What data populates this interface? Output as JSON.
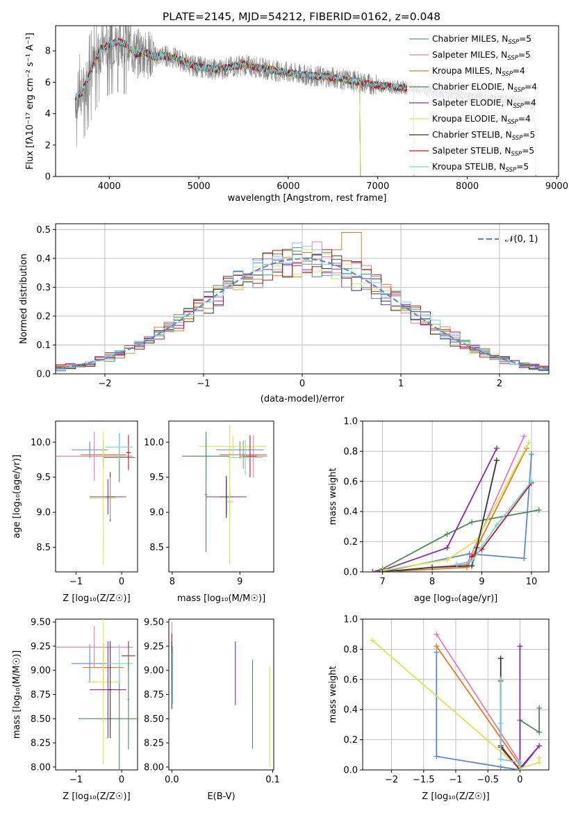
{
  "figure": {
    "title": "PLATE=2145, MJD=54212, FIBERID=0162, z=0.048"
  },
  "chart_data": [
    {
      "id": "spectrum",
      "type": "line",
      "xlabel": "wavelength [Angstrom, rest frame]",
      "ylabel": "Flux [fλ10⁻¹⁷ erg cm⁻² s⁻¹ A⁻¹]",
      "xlim": [
        3400,
        9020
      ],
      "ylim": [
        0,
        9.6
      ],
      "xticks": [
        4000,
        5000,
        6000,
        7000,
        8000,
        9000
      ],
      "yticks": [
        0,
        2,
        4,
        6,
        8
      ],
      "legend_position": "right",
      "observed_color": "#808080",
      "continuum": [
        [
          3620,
          5.0
        ],
        [
          3700,
          5.4
        ],
        [
          3800,
          6.8
        ],
        [
          3900,
          8.1
        ],
        [
          4000,
          8.4
        ],
        [
          4100,
          8.6
        ],
        [
          4200,
          8.4
        ],
        [
          4300,
          7.8
        ],
        [
          4400,
          7.9
        ],
        [
          4500,
          7.6
        ],
        [
          4600,
          7.7
        ],
        [
          4700,
          7.6
        ],
        [
          4800,
          7.4
        ],
        [
          4900,
          7.1
        ],
        [
          5000,
          7.0
        ],
        [
          5100,
          6.9
        ],
        [
          5200,
          6.8
        ],
        [
          5300,
          6.9
        ],
        [
          5400,
          7.0
        ],
        [
          5500,
          7.1
        ],
        [
          5600,
          7.0
        ],
        [
          5700,
          6.9
        ],
        [
          5800,
          6.8
        ],
        [
          5900,
          6.7
        ],
        [
          6000,
          6.6
        ],
        [
          6100,
          6.5
        ],
        [
          6200,
          6.45
        ],
        [
          6300,
          6.4
        ],
        [
          6400,
          6.35
        ],
        [
          6500,
          6.3
        ],
        [
          6600,
          6.2
        ],
        [
          6700,
          6.1
        ],
        [
          6800,
          6.0
        ],
        [
          6900,
          5.9
        ],
        [
          7000,
          5.8
        ],
        [
          7100,
          5.75
        ],
        [
          7200,
          5.7
        ],
        [
          7300,
          5.65
        ],
        [
          7400,
          5.6
        ],
        [
          7500,
          5.5
        ],
        [
          7600,
          5.4
        ],
        [
          7700,
          5.3
        ],
        [
          7800,
          5.2
        ],
        [
          7900,
          5.15
        ],
        [
          8000,
          5.1
        ],
        [
          8100,
          5.05
        ],
        [
          8200,
          5.0
        ],
        [
          8300,
          4.95
        ],
        [
          8400,
          4.9
        ],
        [
          8500,
          4.85
        ],
        [
          8600,
          4.8
        ],
        [
          8700,
          4.6
        ],
        [
          8760,
          4.5
        ]
      ],
      "series": [
        {
          "name": "Chabrier MILES, N",
          "sub": "SSP",
          "suffix": "=5",
          "color": "#5b87d6",
          "range": [
            3620,
            7400
          ]
        },
        {
          "name": "Salpeter MILES, N",
          "sub": "SSP",
          "suffix": "=5",
          "color": "#e87aaa",
          "range": [
            3620,
            7400
          ]
        },
        {
          "name": "Kroupa MILES, N",
          "sub": "SSP",
          "suffix": "=4",
          "color": "#e07a22",
          "range": [
            3620,
            7400
          ]
        },
        {
          "name": "Chabrier ELODIE, N",
          "sub": "SSP",
          "suffix": "=4",
          "color": "#4e8a55",
          "range": [
            3900,
            6800
          ]
        },
        {
          "name": "Salpeter ELODIE, N",
          "sub": "SSP",
          "suffix": "=4",
          "color": "#8a27a8",
          "range": [
            3900,
            6800
          ]
        },
        {
          "name": "Kroupa ELODIE, N",
          "sub": "SSP",
          "suffix": "=4",
          "color": "#d7e84a",
          "range": [
            3900,
            6800
          ]
        },
        {
          "name": "Chabrier STELIB, N",
          "sub": "SSP",
          "suffix": "=5",
          "color": "#333333",
          "range": [
            3620,
            8760
          ]
        },
        {
          "name": "Salpeter STELIB, N",
          "sub": "SSP",
          "suffix": "=5",
          "color": "#c4161c",
          "range": [
            3620,
            8760
          ]
        },
        {
          "name": "Kroupa STELIB, N",
          "sub": "SSP",
          "suffix": "=5",
          "color": "#6fd4e0",
          "range": [
            3620,
            8760
          ]
        }
      ]
    },
    {
      "id": "residuals",
      "type": "line",
      "xlabel": "(data-model)/error",
      "ylabel": "Normed distribution",
      "xlim": [
        -2.5,
        2.5
      ],
      "ylim": [
        0,
        0.52
      ],
      "xticks": [
        -2,
        -1,
        0,
        1,
        2
      ],
      "yticks": [
        0.0,
        0.1,
        0.2,
        0.3,
        0.4,
        0.5
      ],
      "grid": true,
      "legend_position": "top-right",
      "legend_label": "𝒩(0, 1)",
      "gaussian_color": "#5b87d6",
      "histogram_bins": 50,
      "spike": {
        "x": 0.55,
        "value": 0.49
      }
    },
    {
      "id": "age_vs_Z",
      "type": "scatter",
      "xlabel": "Z [log₁₀(Z/Z☉)]",
      "ylabel": "age  [log₁₀(age/yr)]",
      "xlim": [
        -1.45,
        0.35
      ],
      "ylim": [
        8.15,
        10.3
      ],
      "xticks": [
        -1,
        0
      ],
      "yticks": [
        8.5,
        9.0,
        9.5,
        10.0
      ],
      "points": [
        {
          "color": "#5b87d6",
          "x": -0.7,
          "xerr": 0.4,
          "y": 9.89,
          "yerr": 0.12
        },
        {
          "color": "#e87aaa",
          "x": -0.6,
          "xerr": 0.85,
          "y": 9.8,
          "yerr": 0.35
        },
        {
          "color": "#e07a22",
          "x": -0.4,
          "xerr": 0.5,
          "y": 9.82,
          "yerr": 0.2
        },
        {
          "color": "#4e8a55",
          "x": -0.05,
          "xerr": 0.35,
          "y": 9.78,
          "yerr": 0.35
        },
        {
          "color": "#d7e84a",
          "x": -0.4,
          "xerr": 0.3,
          "y": 9.2,
          "yerr": 0.95
        },
        {
          "color": "#8a27a8",
          "x": -0.3,
          "xerr": 0.4,
          "y": 9.22,
          "yerr": 0.25
        },
        {
          "color": "#333333",
          "x": -0.25,
          "xerr": 0.1,
          "y": 9.22,
          "yerr": 0.35
        },
        {
          "color": "#c4161c",
          "x": 0.15,
          "xerr": 0.05,
          "y": 9.85,
          "yerr": 0.25
        },
        {
          "color": "#6fd4e0",
          "x": -0.05,
          "xerr": 0.3,
          "y": 9.93,
          "yerr": 0.2
        },
        {
          "color": "#b0b0b0",
          "x": -0.25,
          "xerr": 0.02,
          "y": 9.2,
          "yerr": 0.3
        }
      ]
    },
    {
      "id": "age_vs_mass",
      "type": "scatter",
      "xlabel": "mass [log₁₀(M/M☉)]",
      "ylabel": "",
      "xlim": [
        7.95,
        9.5
      ],
      "ylim": [
        8.15,
        10.3
      ],
      "xticks": [
        8,
        9
      ],
      "yticks": [
        8.5,
        9.0,
        9.5,
        10.0
      ],
      "points": [
        {
          "color": "#5b87d6",
          "x": 9.0,
          "xerr": 0.35,
          "y": 9.89,
          "yerr": 0.12
        },
        {
          "color": "#e87aaa",
          "x": 9.2,
          "xerr": 0.2,
          "y": 9.8,
          "yerr": 0.3
        },
        {
          "color": "#e07a22",
          "x": 9.05,
          "xerr": 0.35,
          "y": 9.82,
          "yerr": 0.2
        },
        {
          "color": "#4e8a55",
          "x": 8.5,
          "xerr": 0.35,
          "y": 9.8,
          "yerr": 0.35
        },
        {
          "color": "#d7e84a",
          "x": 8.9,
          "xerr": 0.5,
          "y": 9.94,
          "yerr": 0.15
        },
        {
          "color": "#8a27a8",
          "x": 8.8,
          "xerr": 0.3,
          "y": 9.22,
          "yerr": 0.25
        },
        {
          "color": "#333333",
          "x": 8.8,
          "xerr": 0.1,
          "y": 9.22,
          "yerr": 0.3
        },
        {
          "color": "#c4161c",
          "x": 9.15,
          "xerr": 0.1,
          "y": 9.8,
          "yerr": 0.3
        },
        {
          "color": "#6fd4e0",
          "x": 9.08,
          "xerr": 0.25,
          "y": 9.78,
          "yerr": 0.25
        },
        {
          "color": "#b0b0b0",
          "x": 8.85,
          "xerr": 0.05,
          "y": 9.15,
          "yerr": 0.2
        },
        {
          "color": "#4e8a55",
          "x": 8.5,
          "xerr": 0.02,
          "y": 9.25,
          "yerr": 0.82
        },
        {
          "color": "#d7e84a",
          "x": 8.85,
          "xerr": 0.02,
          "y": 9.25,
          "yerr": 0.98
        }
      ]
    },
    {
      "id": "massweight_vs_age",
      "type": "line",
      "xlabel": "age  [log₁₀(age/yr)]",
      "ylabel": "mass weight",
      "xlim": [
        6.6,
        10.35
      ],
      "ylim": [
        0,
        1.0
      ],
      "xticks": [
        7,
        8,
        9,
        10
      ],
      "yticks": [
        0.0,
        0.2,
        0.4,
        0.6,
        0.8,
        1.0
      ],
      "grid": true,
      "series": [
        {
          "color": "#5b87d6",
          "x": [
            7.0,
            8.75,
            9.85,
            10.0
          ],
          "y": [
            0.0,
            0.12,
            0.09,
            0.78
          ]
        },
        {
          "color": "#e87aaa",
          "x": [
            7.0,
            8.7,
            9.85
          ],
          "y": [
            0.0,
            0.05,
            0.9
          ]
        },
        {
          "color": "#e07a22",
          "x": [
            7.0,
            8.7,
            9.9
          ],
          "y": [
            0.0,
            0.03,
            0.82
          ]
        },
        {
          "color": "#4e8a55",
          "x": [
            6.8,
            7.0,
            8.3,
            8.8,
            10.15
          ],
          "y": [
            0.0,
            0.02,
            0.25,
            0.33,
            0.41
          ]
        },
        {
          "color": "#8a27a8",
          "x": [
            6.8,
            7.0,
            8.3,
            9.3
          ],
          "y": [
            0.0,
            0.01,
            0.16,
            0.82
          ]
        },
        {
          "color": "#d7e84a",
          "x": [
            7.0,
            8.3,
            8.9,
            9.95
          ],
          "y": [
            0.01,
            0.08,
            0.21,
            0.86
          ]
        },
        {
          "color": "#333333",
          "x": [
            7.0,
            8.0,
            8.8,
            8.9,
            9.3
          ],
          "y": [
            0.0,
            0.03,
            0.04,
            0.16,
            0.74
          ]
        },
        {
          "color": "#c4161c",
          "x": [
            8.8,
            9.0,
            10.0
          ],
          "y": [
            0.1,
            0.15,
            0.59
          ]
        },
        {
          "color": "#6fd4e0",
          "x": [
            8.5,
            8.8,
            9.3,
            10.0
          ],
          "y": [
            0.05,
            0.07,
            0.31,
            0.6
          ]
        }
      ]
    },
    {
      "id": "mass_vs_Z",
      "type": "scatter",
      "xlabel": "Z [log₁₀(Z/Z☉)]",
      "ylabel": "mass [log₁₀(M/M☉)]",
      "xlim": [
        -1.45,
        0.35
      ],
      "ylim": [
        7.97,
        9.53
      ],
      "xticks": [
        -1,
        0
      ],
      "yticks": [
        8.0,
        8.25,
        8.5,
        8.75,
        9.0,
        9.25,
        9.5
      ],
      "points": [
        {
          "color": "#5b87d6",
          "x": -0.7,
          "xerr": 0.4,
          "y": 9.07,
          "yerr": 0.2
        },
        {
          "color": "#e87aaa",
          "x": -0.6,
          "xerr": 0.85,
          "y": 9.24,
          "yerr": 0.22
        },
        {
          "color": "#e07a22",
          "x": -0.4,
          "xerr": 0.45,
          "y": 9.03,
          "yerr": 0.25
        },
        {
          "color": "#4e8a55",
          "x": -0.05,
          "xerr": 0.9,
          "y": 8.5,
          "yerr": 0.55
        },
        {
          "color": "#d7e84a",
          "x": -0.4,
          "xerr": 0.35,
          "y": 8.88,
          "yerr": 0.85
        },
        {
          "color": "#8a27a8",
          "x": -0.3,
          "xerr": 0.4,
          "y": 8.8,
          "yerr": 0.5
        },
        {
          "color": "#333333",
          "x": -0.25,
          "xerr": 0.05,
          "y": 8.8,
          "yerr": 0.5
        },
        {
          "color": "#c4161c",
          "x": 0.15,
          "xerr": 0.15,
          "y": 9.15,
          "yerr": 0.15
        },
        {
          "color": "#6fd4e0",
          "x": -0.05,
          "xerr": 0.3,
          "y": 9.07,
          "yerr": 0.2
        },
        {
          "color": "#4e8a55",
          "x": 0.15,
          "xerr": 0.02,
          "y": 8.7,
          "yerr": 0.52
        }
      ]
    },
    {
      "id": "mass_vs_ebv",
      "type": "scatter",
      "xlabel": "E(B-V)",
      "ylabel": "",
      "xlim": [
        -0.003,
        0.101
      ],
      "ylim": [
        7.97,
        9.53
      ],
      "xticks": [
        0.0,
        0.1
      ],
      "xticklabels": [
        "0.0",
        "0.1"
      ],
      "yticks": [
        8.0,
        8.25,
        8.5,
        8.75,
        9.0,
        9.25,
        9.5
      ],
      "points": [
        {
          "color": "#e87aaa",
          "x": 0.0,
          "yerr": 0.3,
          "y": 9.2
        },
        {
          "color": "#c4161c",
          "x": 0.0,
          "yerr": 0.1,
          "y": 9.28
        },
        {
          "color": "#6fd4e0",
          "x": 0.001,
          "yerr": 0.3,
          "y": 8.95
        },
        {
          "color": "#333333",
          "x": 0.0,
          "yerr": 0.35,
          "y": 8.95
        },
        {
          "color": "#8a27a8",
          "x": 0.063,
          "yerr": 0.33,
          "y": 8.97
        },
        {
          "color": "#4e8a55",
          "x": 0.08,
          "yerr": 0.46,
          "y": 8.65
        },
        {
          "color": "#d7e84a",
          "x": 0.097,
          "yerr": 0.52,
          "y": 8.52
        }
      ]
    },
    {
      "id": "massweight_vs_Z",
      "type": "line",
      "xlabel": "Z [log₁₀(Z/Z☉)]",
      "ylabel": "mass weight",
      "xlim": [
        -2.45,
        0.45
      ],
      "ylim": [
        0,
        1.0
      ],
      "xticks": [
        -2.0,
        -1.5,
        -1.0,
        -0.5,
        0.0
      ],
      "yticks": [
        0.0,
        0.2,
        0.4,
        0.6,
        0.8,
        1.0
      ],
      "grid": true,
      "series": [
        {
          "color": "#5b87d6",
          "x": [
            -1.3,
            -1.3,
            -0.3,
            0.0
          ],
          "y": [
            0.78,
            0.09,
            0.02,
            0.0
          ]
        },
        {
          "color": "#e87aaa",
          "x": [
            -1.3,
            0.0,
            0.0
          ],
          "y": [
            0.9,
            0.05,
            0.0
          ]
        },
        {
          "color": "#e07a22",
          "x": [
            -1.3,
            0.0
          ],
          "y": [
            0.82,
            0.03
          ]
        },
        {
          "color": "#4e8a55",
          "x": [
            0.3,
            0.3,
            0.0,
            0.0
          ],
          "y": [
            0.41,
            0.25,
            0.33,
            0.0
          ]
        },
        {
          "color": "#8a27a8",
          "x": [
            0.0,
            0.0,
            0.3,
            0.0
          ],
          "y": [
            0.82,
            0.01,
            0.16,
            0.0
          ]
        },
        {
          "color": "#d7e84a",
          "x": [
            -2.3,
            0.0,
            0.3,
            0.3
          ],
          "y": [
            0.86,
            0.01,
            0.05,
            0.08
          ]
        },
        {
          "color": "#333333",
          "x": [
            -0.3,
            -0.3,
            0.0
          ],
          "y": [
            0.74,
            0.16,
            0.0
          ]
        },
        {
          "color": "#c4161c",
          "x": [
            -0.3,
            -0.3,
            0.0
          ],
          "y": [
            0.59,
            0.15,
            0.0
          ]
        },
        {
          "color": "#6fd4e0",
          "x": [
            -0.3,
            -0.3,
            -0.3,
            0.0,
            0.0
          ],
          "y": [
            0.6,
            0.31,
            0.07,
            0.05,
            0.0
          ]
        }
      ]
    }
  ]
}
